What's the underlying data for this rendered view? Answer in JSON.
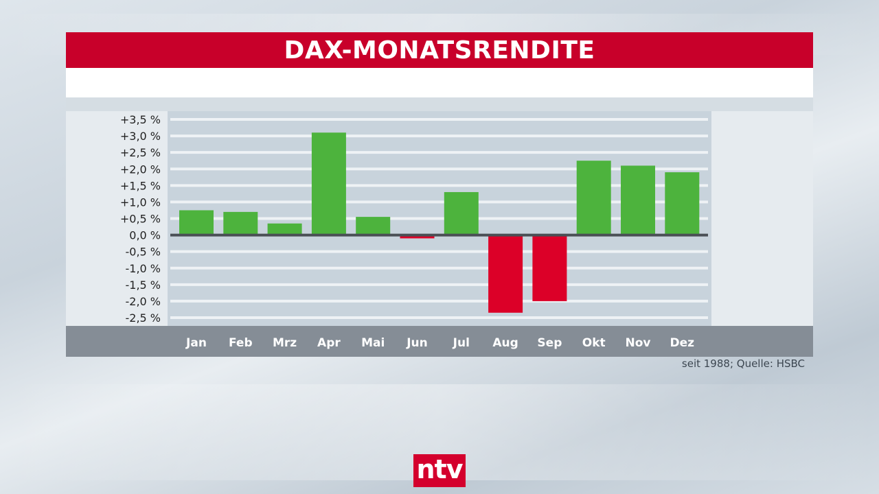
{
  "header": {
    "title": "DAX-MONATSRENDITE"
  },
  "source_note": "seit 1988; Quelle: HSBC",
  "logo_text": "ntv",
  "colors": {
    "positive": "#4db33d",
    "negative": "#dc0028",
    "title_bg": "#c8002a"
  },
  "chart_data": {
    "type": "bar",
    "title": "DAX-MONATSRENDITE",
    "categories": [
      "Jan",
      "Feb",
      "Mrz",
      "Apr",
      "Mai",
      "Jun",
      "Jul",
      "Aug",
      "Sep",
      "Okt",
      "Nov",
      "Dez"
    ],
    "values": [
      0.75,
      0.7,
      0.35,
      3.1,
      0.55,
      -0.1,
      1.3,
      -2.35,
      -2.0,
      2.25,
      2.1,
      1.9
    ],
    "ylim": [
      -2.5,
      3.5
    ],
    "yticks": [
      3.5,
      3.0,
      2.5,
      2.0,
      1.5,
      1.0,
      0.5,
      0.0,
      -0.5,
      -1.0,
      -1.5,
      -2.0,
      -2.5
    ],
    "ytick_labels": [
      "+3,5 %",
      "+3,0 %",
      "+2,5 %",
      "+2,0 %",
      "+1,5 %",
      "+1,0 %",
      "+0,5 %",
      "0,0 %",
      "-0,5 %",
      "-1,0 %",
      "-1,5 %",
      "-2,0 %",
      "-2,5 %"
    ],
    "xlabel": "",
    "ylabel": "",
    "grid": true,
    "legend": "none"
  }
}
